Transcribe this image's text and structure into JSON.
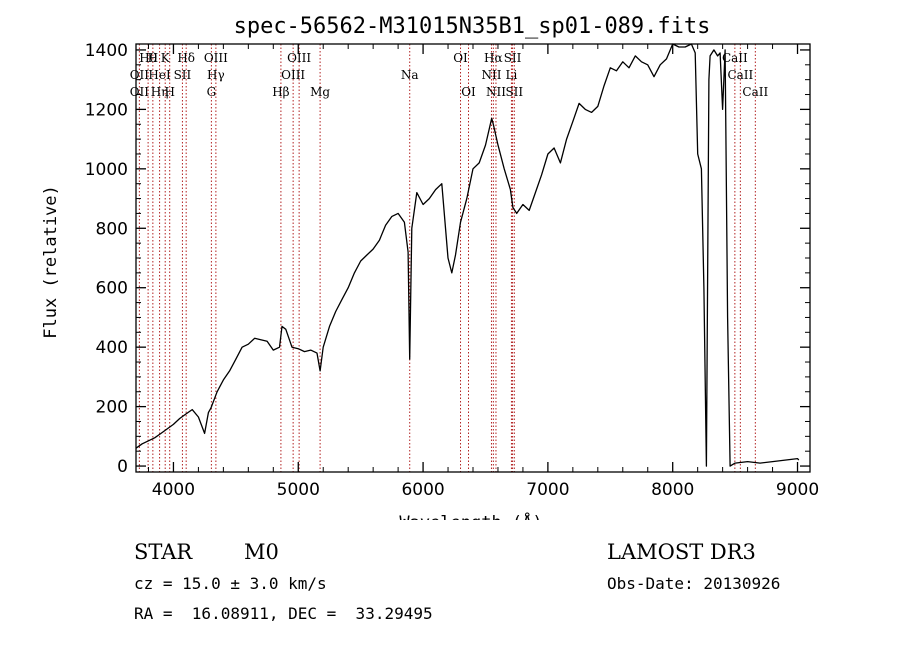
{
  "chart_data": {
    "type": "line",
    "title": "spec-56562-M31015N35B1_sp01-089.fits",
    "xlabel": "Wavelength (Å)",
    "ylabel": "Flux (relative)",
    "xlim": [
      3700,
      9100
    ],
    "ylim": [
      -20,
      1420
    ],
    "xticks": [
      4000,
      5000,
      6000,
      7000,
      8000,
      9000
    ],
    "yticks": [
      0,
      200,
      400,
      600,
      800,
      1000,
      1200,
      1400
    ],
    "grid": false,
    "series": [
      {
        "x": [
          3700,
          3750,
          3800,
          3850,
          3900,
          3950,
          4000,
          4050,
          4100,
          4150,
          4200,
          4250,
          4280,
          4300,
          4350,
          4400,
          4450,
          4500,
          4550,
          4600,
          4650,
          4700,
          4750,
          4800,
          4850,
          4870,
          4900,
          4950,
          5000,
          5050,
          5100,
          5150,
          5175,
          5200,
          5250,
          5300,
          5350,
          5400,
          5450,
          5500,
          5550,
          5600,
          5650,
          5700,
          5750,
          5800,
          5850,
          5880,
          5893,
          5910,
          5950,
          6000,
          6050,
          6100,
          6150,
          6200,
          6230,
          6260,
          6300,
          6350,
          6400,
          6450,
          6500,
          6550,
          6563,
          6600,
          6650,
          6700,
          6720,
          6750,
          6800,
          6850,
          6900,
          6950,
          7000,
          7050,
          7100,
          7150,
          7200,
          7250,
          7300,
          7350,
          7400,
          7450,
          7500,
          7550,
          7600,
          7650,
          7700,
          7750,
          7800,
          7850,
          7900,
          7950,
          8000,
          8050,
          8100,
          8150,
          8180,
          8200,
          8230,
          8250,
          8270,
          8290,
          8300,
          8330,
          8360,
          8380,
          8400,
          8420,
          8440,
          8460,
          8500,
          8600,
          8700,
          8800,
          8900,
          9000,
          9010
        ],
        "values": [
          60,
          75,
          85,
          95,
          110,
          125,
          140,
          160,
          175,
          190,
          165,
          110,
          180,
          195,
          250,
          290,
          320,
          360,
          400,
          410,
          430,
          425,
          420,
          390,
          400,
          470,
          460,
          400,
          395,
          385,
          390,
          380,
          320,
          400,
          470,
          520,
          560,
          600,
          650,
          690,
          710,
          730,
          760,
          810,
          840,
          850,
          820,
          720,
          360,
          800,
          920,
          880,
          900,
          930,
          950,
          700,
          650,
          710,
          820,
          900,
          1000,
          1020,
          1080,
          1170,
          1150,
          1080,
          1000,
          930,
          870,
          850,
          880,
          860,
          920,
          980,
          1050,
          1070,
          1020,
          1100,
          1160,
          1220,
          1200,
          1190,
          1210,
          1280,
          1340,
          1330,
          1360,
          1340,
          1380,
          1360,
          1350,
          1310,
          1350,
          1370,
          1420,
          1410,
          1410,
          1420,
          1390,
          1050,
          1000,
          600,
          0,
          1300,
          1380,
          1400,
          1380,
          1390,
          1200,
          1400,
          500,
          0,
          10,
          15,
          10,
          15,
          20,
          25,
          20
        ]
      }
    ],
    "lines": [
      {
        "x": 3797,
        "label": "Hθ",
        "row": 1
      },
      {
        "x": 3835,
        "label": "H",
        "row": 1
      },
      {
        "x": 3934,
        "label": "K",
        "row": 1
      },
      {
        "x": 4102,
        "label": "Hδ",
        "row": 1
      },
      {
        "x": 4340,
        "label": "OIII",
        "row": 1
      },
      {
        "x": 5007,
        "label": "OIII",
        "row": 1
      },
      {
        "x": 6300,
        "label": "OI",
        "row": 1
      },
      {
        "x": 6563,
        "label": "Hα",
        "row": 1
      },
      {
        "x": 6717,
        "label": "SII",
        "row": 1
      },
      {
        "x": 8498,
        "label": "CaII",
        "row": 1
      },
      {
        "x": 3727,
        "label": "OII",
        "row": 2
      },
      {
        "x": 3889,
        "label": "HeI",
        "row": 2
      },
      {
        "x": 4072,
        "label": "SII",
        "row": 2
      },
      {
        "x": 4340,
        "label": "Hγ",
        "row": 2
      },
      {
        "x": 4959,
        "label": "OIII",
        "row": 2
      },
      {
        "x": 5893,
        "label": "Na",
        "row": 2
      },
      {
        "x": 6548,
        "label": "NII",
        "row": 2
      },
      {
        "x": 6708,
        "label": "Li",
        "row": 2
      },
      {
        "x": 8542,
        "label": "CaII",
        "row": 2
      },
      {
        "x": 3727,
        "label": "OII",
        "row": 3
      },
      {
        "x": 3889,
        "label": "Hη",
        "row": 3
      },
      {
        "x": 3970,
        "label": "H",
        "row": 3
      },
      {
        "x": 4304,
        "label": "G",
        "row": 3
      },
      {
        "x": 4861,
        "label": "Hβ",
        "row": 3
      },
      {
        "x": 5175,
        "label": "Mg",
        "row": 3
      },
      {
        "x": 6364,
        "label": "OI",
        "row": 3
      },
      {
        "x": 6584,
        "label": "NII",
        "row": 3
      },
      {
        "x": 6731,
        "label": "SII",
        "row": 3
      },
      {
        "x": 8662,
        "label": "CaII",
        "row": 3
      }
    ],
    "line_color": "#b22222"
  },
  "info": {
    "class_label": "STAR",
    "subclass_label": "M0",
    "survey": "LAMOST DR3",
    "cz": "cz = 15.0 ± 3.0 km/s",
    "obs_date": "Obs-Date: 20130926",
    "coords": "RA =  16.08911, DEC =  33.29495"
  }
}
